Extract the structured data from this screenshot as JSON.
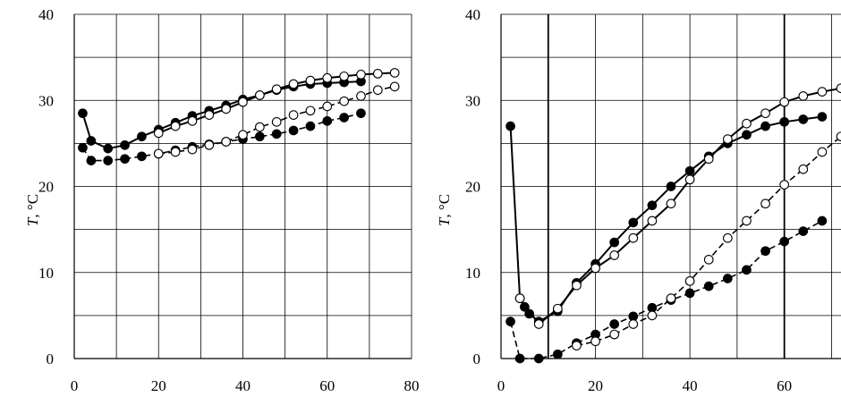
{
  "chart_data": [
    {
      "type": "line",
      "ylabel_var": "T",
      "ylabel_unit": ", °C",
      "xlim": [
        0,
        80
      ],
      "ylim": [
        0,
        40
      ],
      "x_ticks": [
        "0",
        "20",
        "40",
        "60",
        "80"
      ],
      "y_ticks": [
        "0",
        "10",
        "20",
        "30",
        "40"
      ],
      "grid": true,
      "series": [
        {
          "style": "solid",
          "marker": "filled",
          "x": [
            2,
            4,
            8,
            12,
            16,
            20,
            24,
            28,
            32,
            36,
            40,
            44,
            48,
            52,
            56,
            60,
            64,
            68
          ],
          "y": [
            28.5,
            25.3,
            24.4,
            24.8,
            25.8,
            26.6,
            27.4,
            28.2,
            28.8,
            29.4,
            30.1,
            30.6,
            31.2,
            31.6,
            31.9,
            32.0,
            32.1,
            32.2
          ]
        },
        {
          "style": "solid",
          "marker": "open",
          "x": [
            20,
            24,
            28,
            32,
            36,
            40,
            44,
            48,
            52,
            56,
            60,
            64,
            68,
            72,
            76
          ],
          "y": [
            26.2,
            27.0,
            27.6,
            28.3,
            29.0,
            29.8,
            30.6,
            31.3,
            31.9,
            32.3,
            32.6,
            32.8,
            33.0,
            33.1,
            33.2
          ]
        },
        {
          "style": "dashed",
          "marker": "filled",
          "x": [
            2,
            4,
            8,
            12,
            16,
            20,
            24,
            28,
            32,
            36,
            40,
            44,
            48,
            52,
            56,
            60,
            64,
            68
          ],
          "y": [
            24.5,
            23.0,
            23.0,
            23.2,
            23.5,
            23.8,
            24.2,
            24.6,
            24.9,
            25.2,
            25.5,
            25.8,
            26.1,
            26.5,
            27.0,
            27.6,
            28.0,
            28.5
          ]
        },
        {
          "style": "dashed",
          "marker": "open",
          "x": [
            20,
            24,
            28,
            32,
            36,
            40,
            44,
            48,
            52,
            56,
            60,
            64,
            68,
            72,
            76
          ],
          "y": [
            23.8,
            24.0,
            24.3,
            24.8,
            25.2,
            26.0,
            26.9,
            27.5,
            28.3,
            28.8,
            29.3,
            29.9,
            30.5,
            31.2,
            31.6
          ]
        }
      ]
    },
    {
      "type": "line",
      "ylabel_var": "T",
      "ylabel_unit": ", °C",
      "xlim": [
        0,
        72
      ],
      "ylim": [
        0,
        40
      ],
      "x_ticks": [
        "0",
        "20",
        "40",
        "60"
      ],
      "y_ticks": [
        "0",
        "10",
        "20",
        "30",
        "40"
      ],
      "grid": true,
      "series": [
        {
          "style": "solid",
          "marker": "filled",
          "x": [
            2,
            4,
            5,
            6,
            8,
            12,
            16,
            20,
            24,
            28,
            32,
            36,
            40,
            44,
            48,
            52,
            56,
            60,
            64,
            68
          ],
          "y": [
            27.0,
            7.0,
            6.0,
            5.2,
            4.3,
            5.5,
            8.8,
            11.0,
            13.5,
            15.8,
            17.8,
            20.0,
            21.8,
            23.5,
            25.0,
            26.0,
            27.0,
            27.5,
            27.8,
            28.1
          ]
        },
        {
          "style": "solid",
          "marker": "open",
          "x": [
            4,
            8,
            12,
            16,
            20,
            24,
            28,
            32,
            36,
            40,
            44,
            48,
            52,
            56,
            60,
            64,
            68,
            72
          ],
          "y": [
            7.0,
            4.0,
            5.8,
            8.5,
            10.5,
            12.0,
            14.0,
            16.0,
            18.0,
            20.8,
            23.2,
            25.5,
            27.3,
            28.5,
            29.8,
            30.5,
            31.0,
            31.4
          ]
        },
        {
          "style": "dashed",
          "marker": "filled",
          "x": [
            2,
            4,
            8,
            12,
            16,
            20,
            24,
            28,
            32,
            36,
            40,
            44,
            48,
            52,
            56,
            60,
            64,
            68
          ],
          "y": [
            4.3,
            0.0,
            0.0,
            0.5,
            1.8,
            2.8,
            4.0,
            4.9,
            5.9,
            6.8,
            7.6,
            8.4,
            9.3,
            10.3,
            12.5,
            13.6,
            14.8,
            16.0
          ]
        },
        {
          "style": "dashed",
          "marker": "open",
          "x": [
            16,
            20,
            24,
            28,
            32,
            36,
            40,
            44,
            48,
            52,
            56,
            60,
            64,
            68,
            72
          ],
          "y": [
            1.5,
            2.0,
            2.8,
            4.0,
            5.0,
            7.0,
            9.0,
            11.5,
            14.0,
            16.0,
            18.0,
            20.2,
            22.0,
            24.0,
            25.8
          ]
        }
      ]
    }
  ]
}
